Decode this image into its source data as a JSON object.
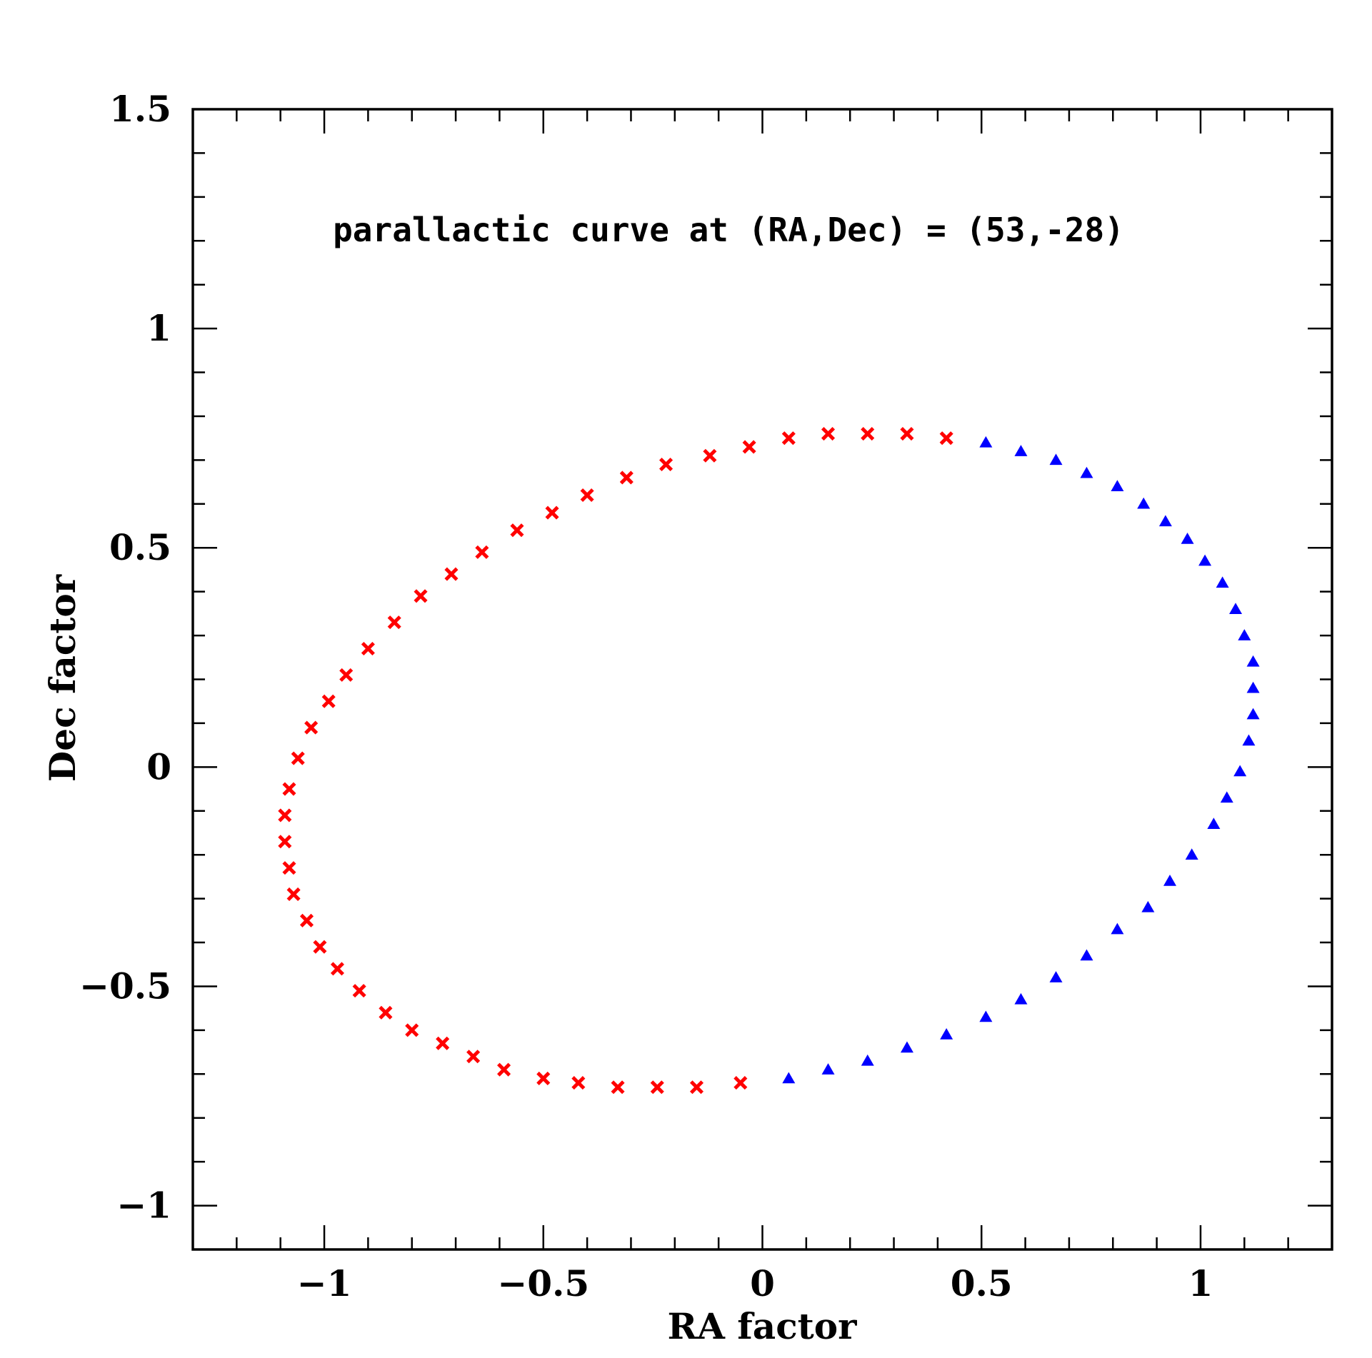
{
  "chart_data": {
    "type": "scatter",
    "title": "",
    "annotation": "parallactic curve at (RA,Dec) = (53,-28)",
    "xlabel": "RA factor",
    "ylabel": "Dec factor",
    "xlim": [
      -1.3,
      1.3
    ],
    "ylim": [
      -1.1,
      1.5
    ],
    "xticks": [
      -1,
      -0.5,
      0,
      0.5,
      1
    ],
    "xtick_labels": [
      "−1",
      "−0.5",
      "0",
      "0.5",
      "1"
    ],
    "yticks": [
      -1,
      -0.5,
      0,
      0.5,
      1,
      1.5
    ],
    "ytick_labels": [
      "−1",
      "−0.5",
      "0",
      "0.5",
      "1",
      "1.5"
    ],
    "x_minor_step": 0.1,
    "y_minor_step": 0.1,
    "grid": false,
    "series": [
      {
        "marker": "x",
        "color": "#ff0000",
        "x": [
          0.42,
          0.33,
          0.24,
          0.15,
          0.06,
          -0.03,
          -0.12,
          -0.22,
          -0.31,
          -0.4,
          -0.48,
          -0.56,
          -0.64,
          -0.71,
          -0.78,
          -0.84,
          -0.9,
          -0.95,
          -0.99,
          -1.03,
          -1.06,
          -1.08,
          -1.09,
          -1.09,
          -1.08,
          -1.07,
          -1.04,
          -1.01,
          -0.97,
          -0.92,
          -0.86,
          -0.8,
          -0.73,
          -0.66,
          -0.59,
          -0.5,
          -0.42,
          -0.33,
          -0.24,
          -0.15,
          -0.05
        ],
        "y": [
          0.75,
          0.76,
          0.76,
          0.76,
          0.75,
          0.73,
          0.71,
          0.69,
          0.66,
          0.62,
          0.58,
          0.54,
          0.49,
          0.44,
          0.39,
          0.33,
          0.27,
          0.21,
          0.15,
          0.09,
          0.02,
          -0.05,
          -0.11,
          -0.17,
          -0.23,
          -0.29,
          -0.35,
          -0.41,
          -0.46,
          -0.51,
          -0.56,
          -0.6,
          -0.63,
          -0.66,
          -0.69,
          -0.71,
          -0.72,
          -0.73,
          -0.73,
          -0.73,
          -0.72
        ]
      },
      {
        "marker": "triangle",
        "color": "#0000ff",
        "x": [
          0.51,
          0.59,
          0.67,
          0.74,
          0.81,
          0.87,
          0.92,
          0.97,
          1.01,
          1.05,
          1.08,
          1.1,
          1.12,
          1.12,
          1.12,
          1.11,
          1.09,
          1.06,
          1.03,
          0.98,
          0.93,
          0.88,
          0.81,
          0.74,
          0.67,
          0.59,
          0.51,
          0.42,
          0.33,
          0.24,
          0.15,
          0.06
        ],
        "y": [
          0.74,
          0.72,
          0.7,
          0.67,
          0.64,
          0.6,
          0.56,
          0.52,
          0.47,
          0.42,
          0.36,
          0.3,
          0.24,
          0.18,
          0.12,
          0.06,
          -0.01,
          -0.07,
          -0.13,
          -0.2,
          -0.26,
          -0.32,
          -0.37,
          -0.43,
          -0.48,
          -0.53,
          -0.57,
          -0.61,
          -0.64,
          -0.67,
          -0.69,
          -0.71
        ]
      }
    ]
  }
}
